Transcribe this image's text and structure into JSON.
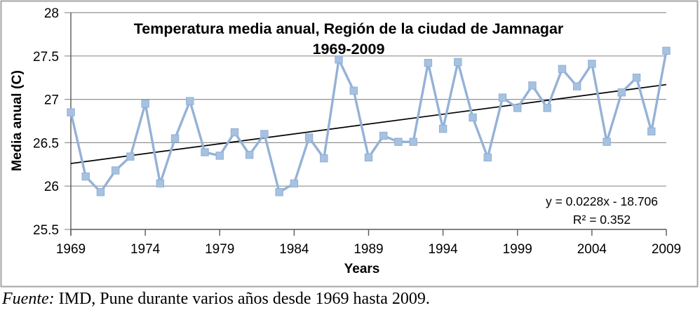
{
  "caption": {
    "label_italic": "Fuente:",
    "text": " IMD, Pune durante varios años desde 1969 hasta 2009."
  },
  "chart_data": {
    "type": "line",
    "title_line1": "Temperatura media anual, Región de la ciudad de Jamnagar",
    "title_line2": "1969-2009",
    "xlabel": "Years",
    "ylabel": "Media anual  (C)",
    "xlim": [
      1969,
      2009
    ],
    "ylim": [
      25.5,
      28
    ],
    "grid": "horizontal",
    "legend": "none",
    "x": [
      1969,
      1970,
      1971,
      1972,
      1973,
      1974,
      1975,
      1976,
      1977,
      1978,
      1979,
      1980,
      1981,
      1982,
      1983,
      1984,
      1985,
      1986,
      1987,
      1988,
      1989,
      1990,
      1991,
      1992,
      1993,
      1994,
      1995,
      1996,
      1997,
      1998,
      1999,
      2000,
      2001,
      2002,
      2003,
      2004,
      2005,
      2006,
      2007,
      2008,
      2009
    ],
    "series": [
      {
        "name": "Media anual (C)",
        "values": [
          26.85,
          26.11,
          25.93,
          26.18,
          26.34,
          26.95,
          26.03,
          26.55,
          26.98,
          26.39,
          26.35,
          26.62,
          26.36,
          26.6,
          25.93,
          26.03,
          26.56,
          26.32,
          27.46,
          27.1,
          26.33,
          26.58,
          26.51,
          26.51,
          27.42,
          26.66,
          27.43,
          26.79,
          26.33,
          27.02,
          26.9,
          27.16,
          26.9,
          27.35,
          27.15,
          27.41,
          26.51,
          27.08,
          27.25,
          26.63,
          27.56
        ]
      }
    ],
    "x_ticks": [
      1969,
      1974,
      1979,
      1984,
      1989,
      1994,
      1999,
      2004,
      2009
    ],
    "y_ticks": [
      "25.5",
      "26",
      "26.5",
      "27",
      "27.5",
      "28"
    ],
    "y_tick_values": [
      25.5,
      26,
      26.5,
      27,
      27.5,
      28
    ],
    "trendline": {
      "equation": "y = 0.0228x - 18.706",
      "r_squared": "R² = 0.352",
      "start": {
        "x": 1969,
        "y": 26.26
      },
      "end": {
        "x": 2009,
        "y": 27.17
      }
    },
    "colors": {
      "series": "#95b2d7",
      "marker_fill": "#a7c2e0",
      "marker_stroke": "#8fb0d6",
      "trend": "#000000",
      "grid": "#919191",
      "axis": "#595959",
      "frame": "#a6a6a6",
      "text": "#000000"
    }
  }
}
